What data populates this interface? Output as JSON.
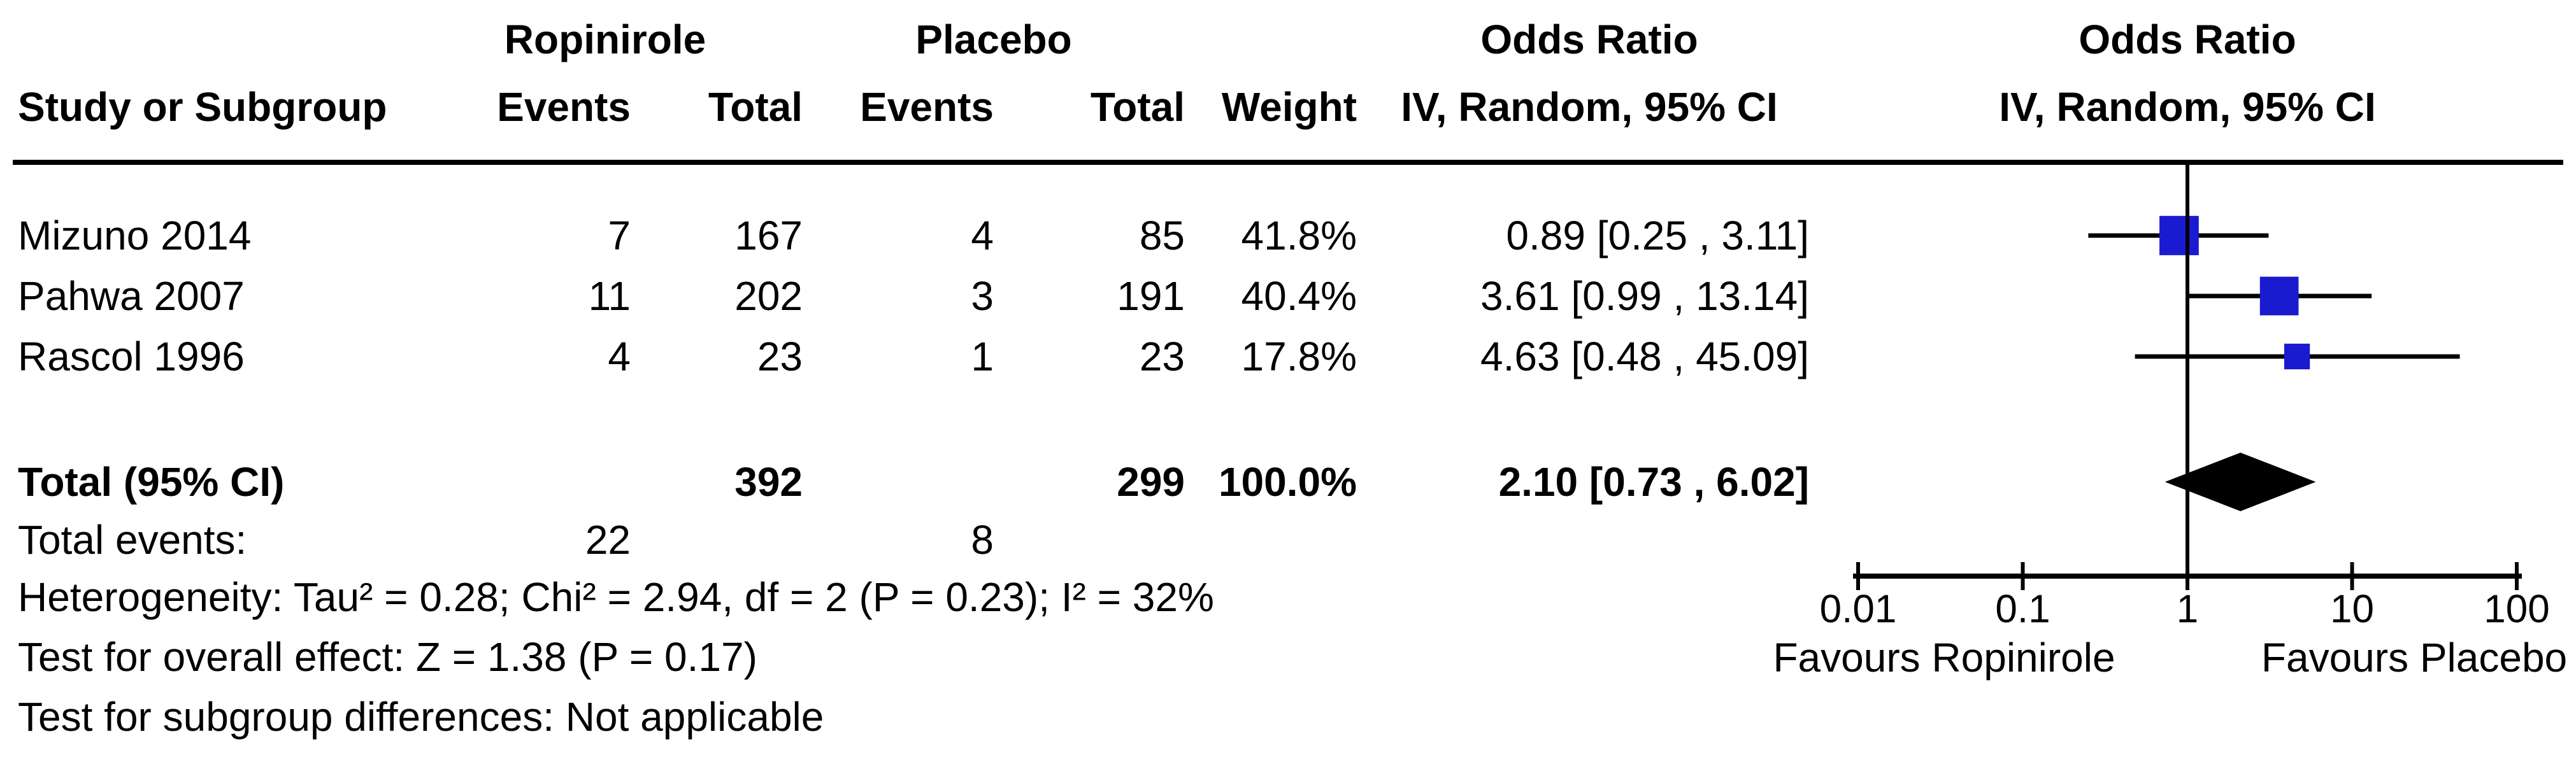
{
  "header": {
    "group_ropinirole": "Ropinirole",
    "group_placebo": "Placebo",
    "odds_ratio_col": "Odds Ratio",
    "odds_ratio_plot": "Odds Ratio",
    "method_col": "IV, Random, 95% CI",
    "method_plot": "IV, Random, 95% CI",
    "study_col": "Study or Subgroup",
    "events_col_1": "Events",
    "total_col_1": "Total",
    "events_col_2": "Events",
    "total_col_2": "Total",
    "weight_col": "Weight"
  },
  "chart_data": {
    "type": "forest",
    "effect_measure": "Odds Ratio",
    "model": "IV, Random, 95% CI",
    "studies": [
      {
        "name": "Mizuno 2014",
        "events_treat": "7",
        "total_treat": "167",
        "events_ctrl": "4",
        "total_ctrl": "85",
        "weight": "41.8%",
        "weight_pct": 41.8,
        "or": 0.89,
        "ci_low": 0.25,
        "ci_high": 3.11,
        "or_text": "0.89 [0.25 , 3.11]"
      },
      {
        "name": "Pahwa 2007",
        "events_treat": "11",
        "total_treat": "202",
        "events_ctrl": "3",
        "total_ctrl": "191",
        "weight": "40.4%",
        "weight_pct": 40.4,
        "or": 3.61,
        "ci_low": 0.99,
        "ci_high": 13.14,
        "or_text": "3.61 [0.99 , 13.14]"
      },
      {
        "name": "Rascol 1996",
        "events_treat": "4",
        "total_treat": "23",
        "events_ctrl": "1",
        "total_ctrl": "23",
        "weight": "17.8%",
        "weight_pct": 17.8,
        "or": 4.63,
        "ci_low": 0.48,
        "ci_high": 45.09,
        "or_text": "4.63 [0.48 , 45.09]"
      }
    ],
    "total": {
      "label": "Total (95% CI)",
      "total_treat": "392",
      "total_ctrl": "299",
      "weight": "100.0%",
      "or": 2.1,
      "ci_low": 0.73,
      "ci_high": 6.02,
      "or_text": "2.10 [0.73 , 6.02]",
      "events_treat": "22",
      "events_ctrl": "8"
    },
    "axis": {
      "scale": "log10",
      "ticks": [
        0.01,
        0.1,
        1,
        10,
        100
      ],
      "labels": [
        "0.01",
        "0.1",
        "1",
        "10",
        "100"
      ],
      "xlim": [
        0.01,
        100
      ]
    },
    "footer_left": "Favours Ropinirole",
    "footer_right": "Favours Placebo",
    "marker_color": "#1a1ad1",
    "line_color": "#000000",
    "diamond_color": "#000000"
  },
  "stats": {
    "total_events_label": "Total events:",
    "heterogeneity": "Heterogeneity: Tau² = 0.28; Chi² = 2.94, df = 2 (P = 0.23); I² = 32%",
    "overall_effect": "Test for overall effect: Z = 1.38 (P = 0.17)",
    "subgroup_diff": "Test for subgroup differences: Not applicable"
  }
}
